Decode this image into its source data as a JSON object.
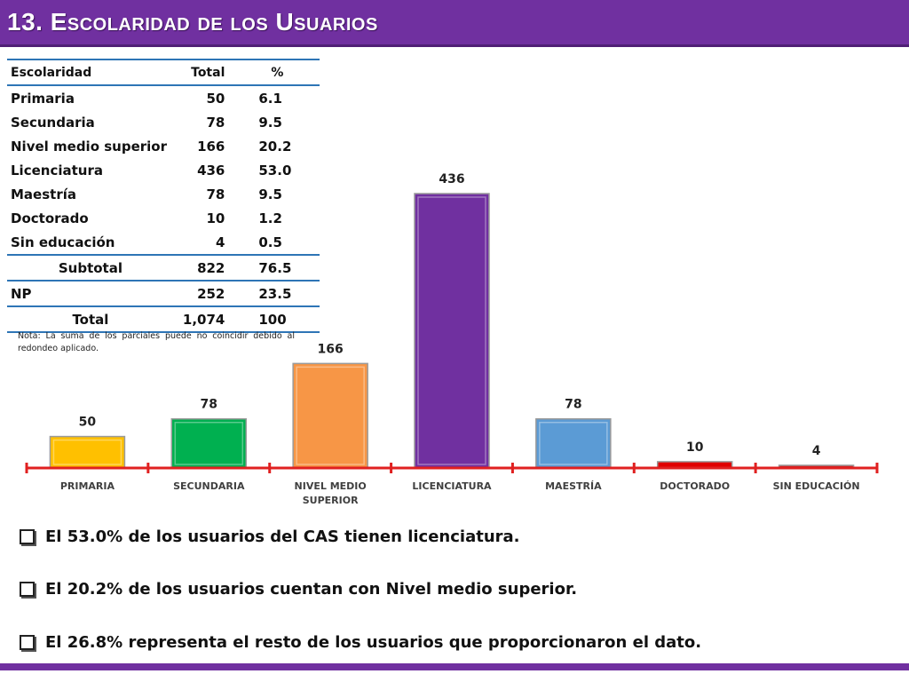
{
  "title": "13. Escolaridad de los Usuarios",
  "table": {
    "headers": [
      "Escolaridad",
      "Total",
      "%"
    ],
    "rows": [
      {
        "label": "Primaria",
        "total": "50",
        "pct": "6.1"
      },
      {
        "label": "Secundaria",
        "total": "78",
        "pct": "9.5"
      },
      {
        "label": "Nivel medio superior",
        "total": "166",
        "pct": "20.2"
      },
      {
        "label": "Licenciatura",
        "total": "436",
        "pct": "53.0"
      },
      {
        "label": "Maestría",
        "total": "78",
        "pct": "9.5"
      },
      {
        "label": "Doctorado",
        "total": "10",
        "pct": "1.2"
      },
      {
        "label": "Sin educación",
        "total": "4",
        "pct": "0.5"
      }
    ],
    "subtotal": {
      "label": "Subtotal",
      "total": "822",
      "pct": "76.5"
    },
    "np": {
      "label": "NP",
      "total": "252",
      "pct": "23.5"
    },
    "total": {
      "label": "Total",
      "total": "1,074",
      "pct": "100"
    },
    "note": "Nota: La suma de los parciales puede no coincidir debido al redondeo aplicado."
  },
  "chart_data": {
    "type": "bar",
    "categories": [
      "PRIMARIA",
      "SECUNDARIA",
      "NIVEL MEDIO SUPERIOR",
      "LICENCIATURA",
      "MAESTRÍA",
      "DOCTORADO",
      "SIN EDUCACIÓN"
    ],
    "category_lines": [
      [
        "PRIMARIA"
      ],
      [
        "SECUNDARIA"
      ],
      [
        "NIVEL MEDIO",
        "SUPERIOR"
      ],
      [
        "LICENCIATURA"
      ],
      [
        "MAESTRÍA"
      ],
      [
        "DOCTORADO"
      ],
      [
        "SIN EDUCACIÓN"
      ]
    ],
    "values": [
      50,
      78,
      166,
      436,
      78,
      10,
      4
    ],
    "colors": [
      "#ffc000",
      "#00b050",
      "#f79646",
      "#7030a0",
      "#5b9bd5",
      "#e00000",
      "#d02020"
    ],
    "axis_color": "#e02020",
    "ylim": [
      0,
      436
    ],
    "xlabel": "",
    "ylabel": ""
  },
  "bullets": [
    "El 53.0% de los usuarios del CAS tienen licenciatura.",
    "El 20.2% de los usuarios cuentan con Nivel medio superior.",
    "El  26.8% representa el resto de los usuarios que proporcionaron el dato."
  ]
}
